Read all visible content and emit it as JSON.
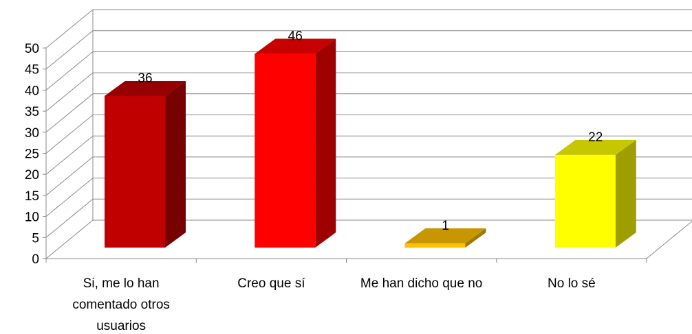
{
  "chart_data": {
    "type": "bar3d",
    "categories": [
      "Si, me lo han comentado otros usuarios",
      "Creo que sí",
      "Me han dicho que no",
      "No lo sé"
    ],
    "values": [
      36,
      46,
      1,
      22
    ],
    "colors": [
      "#c00000",
      "#ff0000",
      "#ffc000",
      "#ffff00"
    ],
    "ylim": [
      0,
      50
    ],
    "yticks": [
      0,
      5,
      10,
      15,
      20,
      25,
      30,
      35,
      40,
      45,
      50
    ],
    "grid": true
  }
}
